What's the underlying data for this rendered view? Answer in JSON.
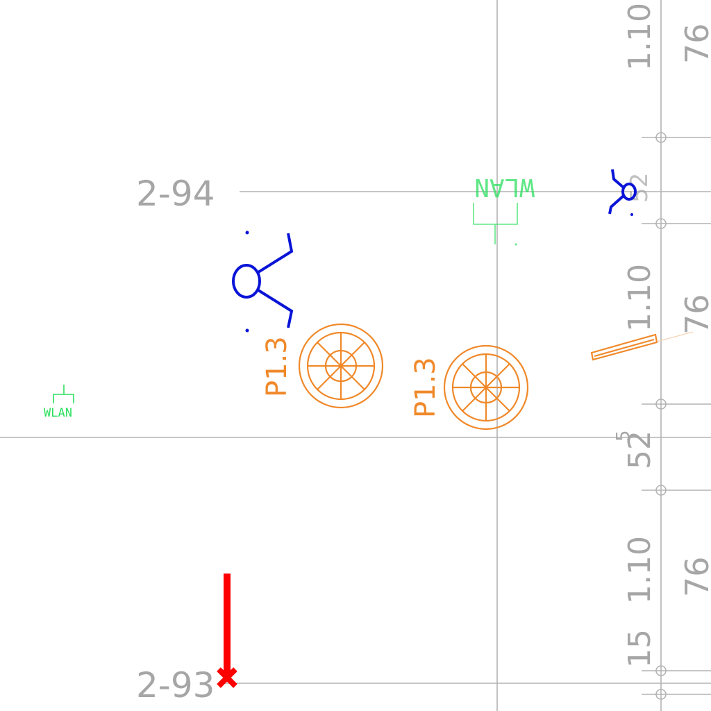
{
  "grid_labels": {
    "row_2_94": "2-94",
    "row_2_93": "2-93"
  },
  "dimensions": {
    "a": "1.10",
    "b": "76",
    "c": "52",
    "c_sup": "5",
    "d": "15"
  },
  "fixtures": {
    "fixture_label": "P1.3",
    "wlan_label": "WLAN"
  },
  "colors": {
    "grid": "#b3b3b3",
    "fixture": "#f0892a",
    "sensor": "#0a14d6",
    "wlan": "#2adf5e",
    "marker": "#ff0000"
  }
}
